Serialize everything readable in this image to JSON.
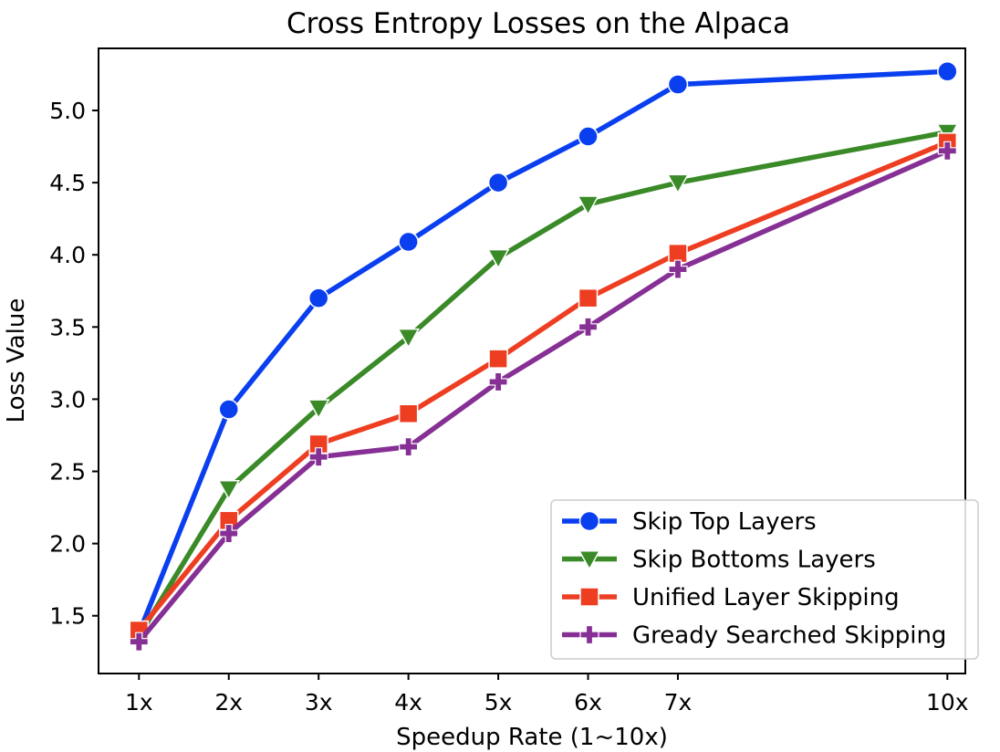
{
  "chart_data": {
    "type": "line",
    "title": "Cross Entropy Losses on the Alpaca",
    "xlabel": "Speedup Rate (1~10x)",
    "ylabel": "Loss Value",
    "x": [
      1,
      2,
      3,
      4,
      5,
      6,
      7,
      10
    ],
    "x_tick_labels": [
      "1x",
      "2x",
      "3x",
      "4x",
      "5x",
      "6x",
      "7x",
      "10x"
    ],
    "xlim": [
      0.55,
      10.2
    ],
    "ylim": [
      1.1,
      5.43
    ],
    "y_ticks": [
      1.5,
      2.0,
      2.5,
      3.0,
      3.5,
      4.0,
      4.5,
      5.0
    ],
    "y_tick_labels": [
      "1.5",
      "2.0",
      "2.5",
      "3.0",
      "3.5",
      "4.0",
      "4.5",
      "5.0"
    ],
    "grid": false,
    "legend_position": "lower-right",
    "series": [
      {
        "name": "Skip Top Layers",
        "color": "#0a3ff0",
        "marker": "circle",
        "values": [
          1.38,
          2.93,
          3.7,
          4.09,
          4.5,
          4.82,
          5.18,
          5.27
        ]
      },
      {
        "name": "Skip Bottoms Layers",
        "color": "#3a8a28",
        "marker": "triangle-down",
        "values": [
          1.36,
          2.38,
          2.94,
          3.43,
          3.98,
          4.35,
          4.5,
          4.85
        ]
      },
      {
        "name": "Unified Layer Skipping",
        "color": "#ee3e22",
        "marker": "square",
        "values": [
          1.4,
          2.16,
          2.69,
          2.9,
          3.28,
          3.7,
          4.01,
          4.78
        ]
      },
      {
        "name": "Gready Searched Skipping",
        "color": "#863095",
        "marker": "plus",
        "values": [
          1.32,
          2.07,
          2.6,
          2.67,
          3.12,
          3.5,
          3.9,
          4.72
        ]
      }
    ]
  }
}
